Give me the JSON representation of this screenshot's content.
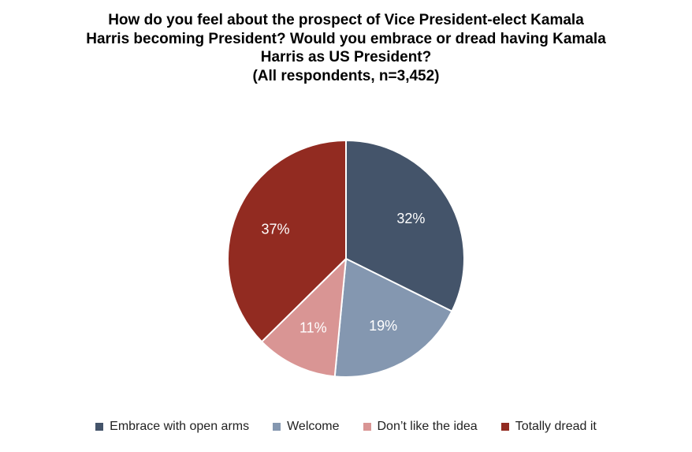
{
  "chart_data": {
    "type": "pie",
    "title_lines": [
      "How do you feel about the prospect of Vice President-elect Kamala",
      "Harris becoming President? Would you embrace or dread having Kamala",
      "Harris as US President?",
      "(All respondents, n=3,452)"
    ],
    "slices": [
      {
        "label": "Embrace with open arms",
        "value": 32,
        "value_label": "32%",
        "color": "#44546a"
      },
      {
        "label": "Welcome",
        "value": 19,
        "value_label": "19%",
        "color": "#8497b0"
      },
      {
        "label": "Don’t like the idea",
        "value": 11,
        "value_label": "11%",
        "color": "#d99594"
      },
      {
        "label": "Totally dread it",
        "value": 37,
        "value_label": "37%",
        "color": "#922b21"
      }
    ],
    "start_angle": "12 o'clock",
    "direction": "clockwise",
    "legend_position": "bottom"
  }
}
